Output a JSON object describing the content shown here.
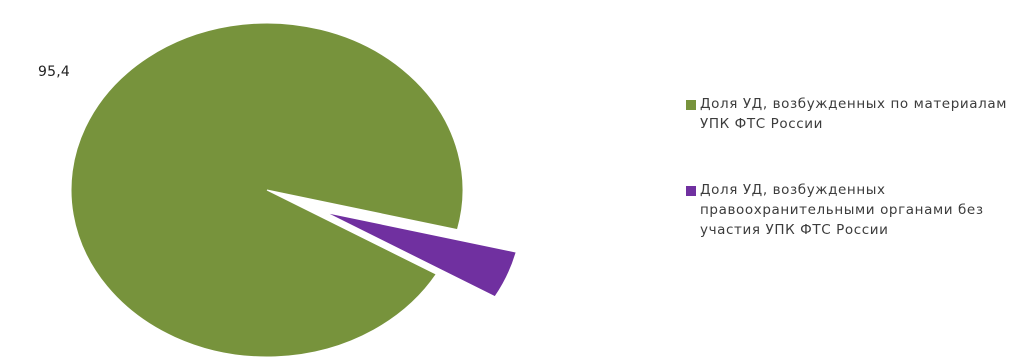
{
  "chart_data": {
    "type": "pie",
    "title": "",
    "series": [
      {
        "values": [
          95.4,
          4.6
        ],
        "colors": [
          "#77933c",
          "#7030a0"
        ]
      }
    ],
    "categories": [
      "Доля УД, возбужденных по материалам УПК ФТС России",
      "Доля УД, возбужденных правоохранительными органами без участия УПК ФТС России"
    ],
    "data_labels": [
      "95,4",
      ""
    ],
    "exploded_slice": 1,
    "legend": "right"
  },
  "legend": {
    "items": [
      {
        "text": "Доля УД, возбужденных по материалам УПК ФТС России",
        "color": "#77933c"
      },
      {
        "text": "Доля УД, возбужденных правоохранительными органами без участия УПК ФТС России",
        "color": "#7030a0"
      }
    ]
  }
}
